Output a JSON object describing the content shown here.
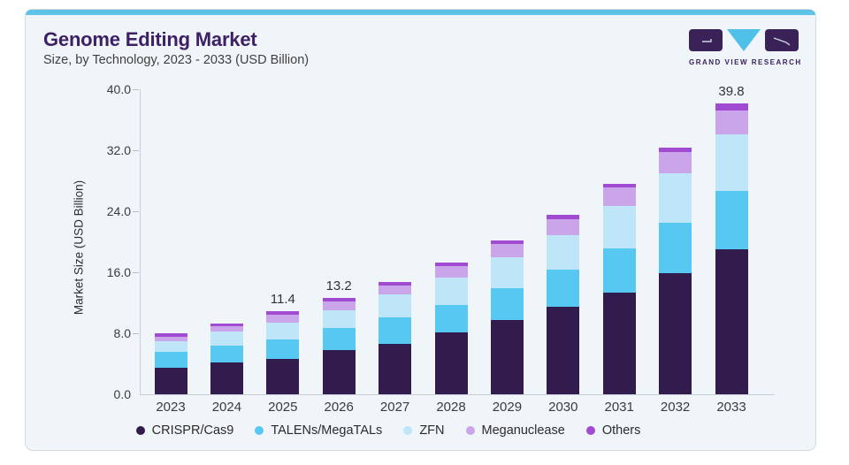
{
  "header": {
    "title": "Genome Editing Market",
    "subtitle": "Size, by Technology, 2023 - 2033 (USD Billion)",
    "logo_text": "GRAND VIEW RESEARCH"
  },
  "chart": {
    "y_axis_label": "Market Size (USD Billion)",
    "y_ticks": [
      "0.0",
      "8.0",
      "16.0",
      "24.0",
      "32.0",
      "40.0"
    ],
    "accent_color": "#5fc3e7",
    "brand_purple": "#3e2066",
    "card_background": "#f0f5f9"
  },
  "chart_data": {
    "type": "bar",
    "stacked": true,
    "title": "Genome Editing Market",
    "subtitle": "Size, by Technology, 2023 - 2033 (USD Billion)",
    "xlabel": "",
    "ylabel": "Market Size (USD Billion)",
    "ylim": [
      0,
      40
    ],
    "y_tick_step": 8,
    "grid": false,
    "legend_position": "bottom",
    "categories": [
      "2023",
      "2024",
      "2025",
      "2026",
      "2027",
      "2028",
      "2029",
      "2030",
      "2031",
      "2032",
      "2033"
    ],
    "series": [
      {
        "name": "CRISPR/Cas9",
        "color": "#321b4d",
        "values": [
          3.6,
          4.3,
          4.8,
          6.0,
          6.9,
          8.5,
          10.1,
          12.0,
          13.9,
          16.6,
          19.8
        ]
      },
      {
        "name": "TALENs/MegaTALs",
        "color": "#57c8f1",
        "values": [
          2.2,
          2.3,
          2.7,
          3.1,
          3.6,
          3.7,
          4.4,
          5.0,
          6.1,
          6.9,
          8.0
        ]
      },
      {
        "name": "ZFN",
        "color": "#bfe5f8",
        "values": [
          1.5,
          2.0,
          2.3,
          2.4,
          3.2,
          3.7,
          4.3,
          4.8,
          5.8,
          6.7,
          7.7
        ]
      },
      {
        "name": "Meganuclease",
        "color": "#cba5e9",
        "values": [
          0.6,
          0.7,
          1.1,
          1.2,
          1.2,
          1.6,
          1.7,
          2.2,
          2.5,
          2.9,
          3.3
        ]
      },
      {
        "name": "Others",
        "color": "#a14ad2",
        "values": [
          0.4,
          0.4,
          0.5,
          0.5,
          0.5,
          0.5,
          0.6,
          0.6,
          0.5,
          0.6,
          1.0
        ]
      }
    ],
    "totals": [
      8.3,
      9.7,
      11.4,
      13.2,
      15.4,
      18.0,
      21.1,
      24.6,
      28.8,
      33.7,
      39.8
    ],
    "value_labels": {
      "2025": "11.4",
      "2026": "13.2",
      "2033": "39.8"
    }
  }
}
